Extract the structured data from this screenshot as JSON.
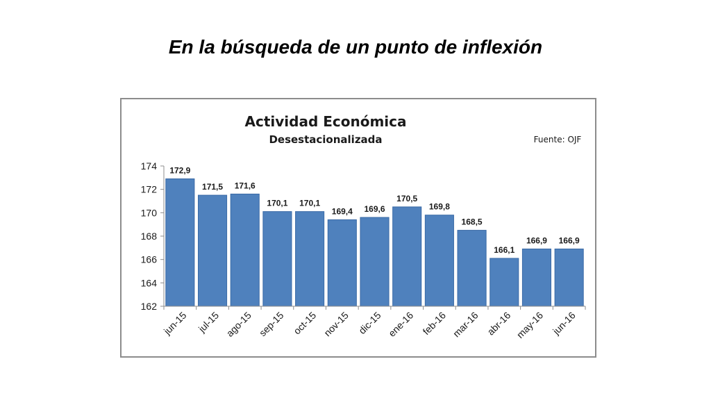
{
  "slide": {
    "title": "En la búsqueda de un punto de inflexión"
  },
  "chart_data": {
    "type": "bar",
    "title": "Actividad Económica",
    "subtitle": "Desestacionalizada",
    "source": "Fuente: OJF",
    "categories": [
      "jun-15",
      "jul-15",
      "ago-15",
      "sep-15",
      "oct-15",
      "nov-15",
      "dic-15",
      "ene-16",
      "feb-16",
      "mar-16",
      "abr-16",
      "may-16",
      "jun-16"
    ],
    "values": [
      172.9,
      171.5,
      171.6,
      170.1,
      170.1,
      169.4,
      169.6,
      170.5,
      169.8,
      168.5,
      166.1,
      166.9,
      166.9
    ],
    "data_labels": [
      "172,9",
      "171,5",
      "171,6",
      "170,1",
      "170,1",
      "169,4",
      "169,6",
      "170,5",
      "169,8",
      "168,5",
      "166,1",
      "166,9",
      "166,9"
    ],
    "ylim": [
      162,
      174
    ],
    "yticks": [
      162,
      164,
      166,
      168,
      170,
      172,
      174
    ],
    "xlabel": "",
    "ylabel": "",
    "grid": false,
    "legend": "none",
    "bar_color": "#4f81bd",
    "bar_edge_color": "#3a6aa6"
  }
}
